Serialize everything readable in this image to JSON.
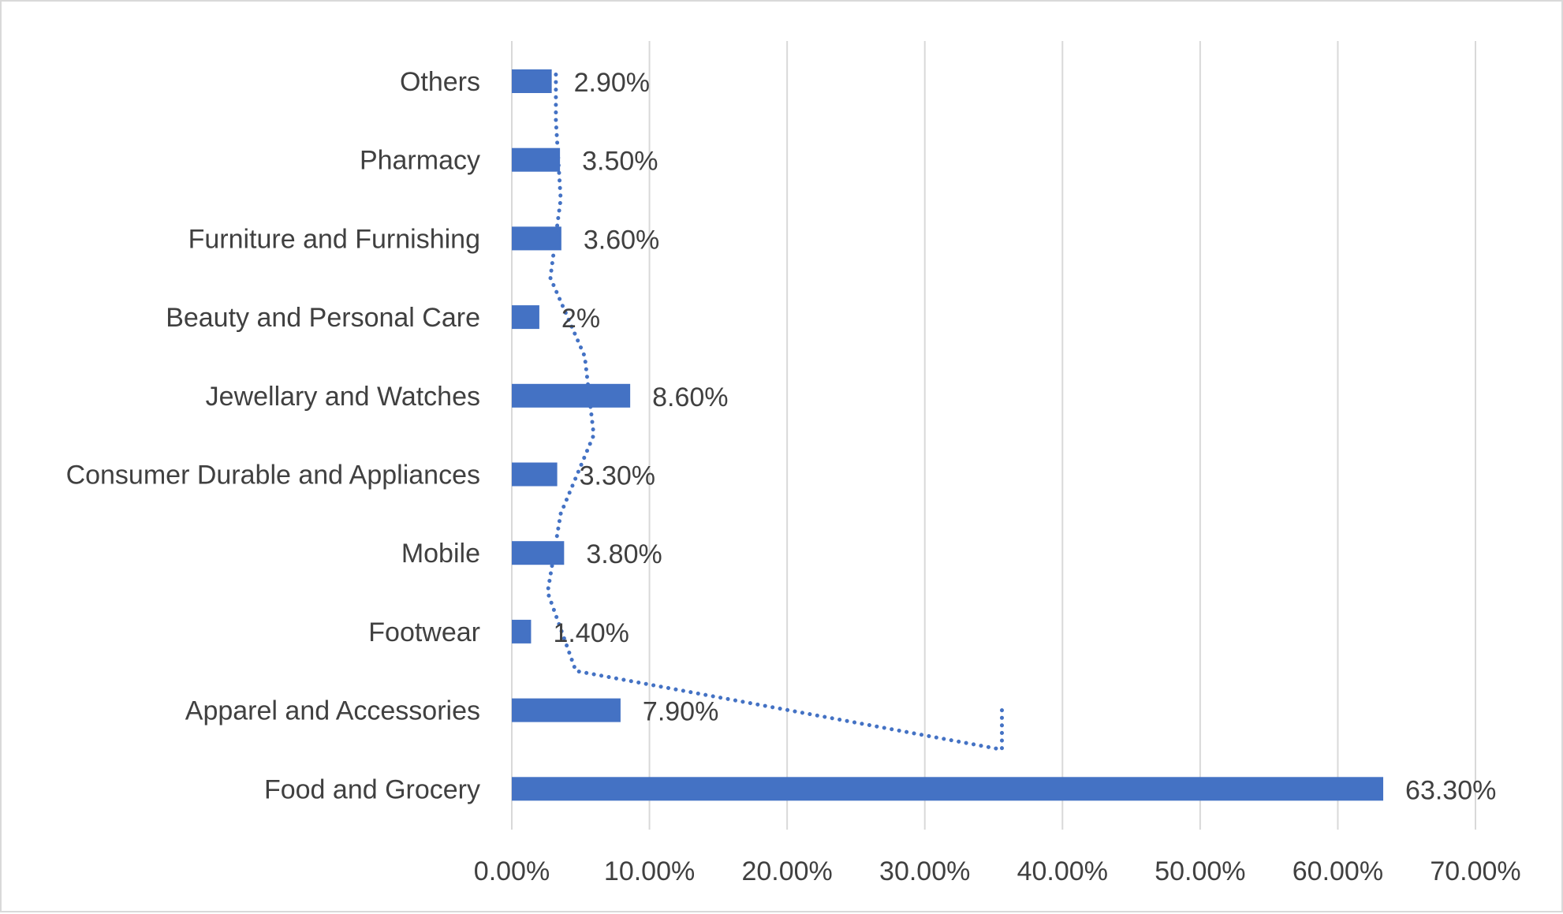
{
  "chart_data": {
    "type": "bar",
    "orientation": "horizontal",
    "categories": [
      "Food and Grocery",
      "Apparel and Accessories",
      "Footwear",
      "Mobile",
      "Consumer Durable and Appliances",
      "Jewellary and Watches",
      "Beauty and Personal Care",
      "Furniture and Furnishing",
      "Pharmacy",
      "Others"
    ],
    "values": [
      63.3,
      7.9,
      1.4,
      3.8,
      3.3,
      8.6,
      2.0,
      3.6,
      3.5,
      2.9
    ],
    "data_labels": [
      "63.30%",
      "7.90%",
      "1.40%",
      "3.80%",
      "3.30%",
      "8.60%",
      "2%",
      "3.60%",
      "3.50%",
      "2.90%"
    ],
    "xlim": [
      0,
      70
    ],
    "x_ticks": [
      0,
      10,
      20,
      30,
      40,
      50,
      60,
      70
    ],
    "x_tick_labels": [
      "0.00%",
      "10.00%",
      "20.00%",
      "30.00%",
      "40.00%",
      "50.00%",
      "60.00%",
      "70.00%"
    ],
    "trendline": {
      "style": "dotted",
      "type": "moving-average"
    },
    "title": "",
    "xlabel": "",
    "ylabel": "",
    "grid": "vertical",
    "legend": "none",
    "colors": {
      "bar": "#4472c4",
      "grid": "#d9d9d9",
      "text": "#404040",
      "trendline": "#4472c4"
    }
  }
}
